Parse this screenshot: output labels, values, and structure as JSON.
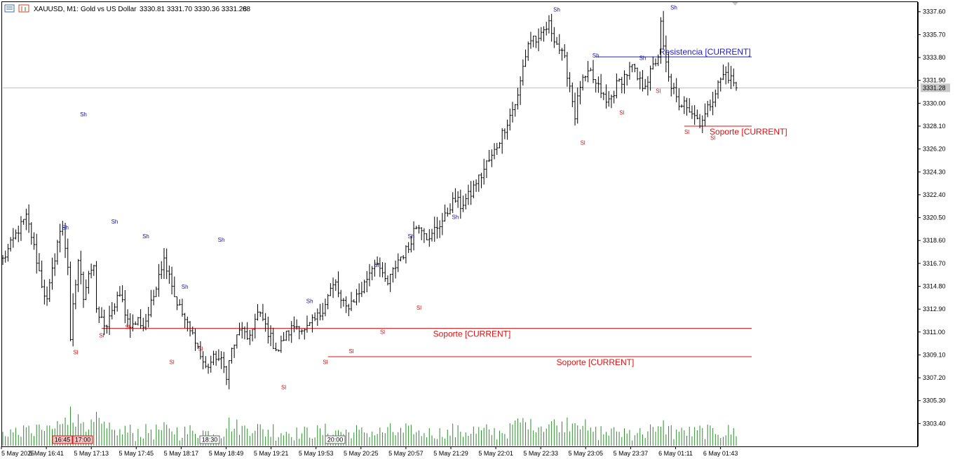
{
  "header": {
    "symbol": "XAUUSD, M1:",
    "description": "Gold vs US Dollar",
    "ohlc": "3330.81 3331.70 3330.36 3331.28",
    "tick_volume": "68"
  },
  "current_price_label": "3331.28",
  "colors": {
    "bars": "#000000",
    "volume": "#2e8b2e",
    "support": "#e01010",
    "resistance": "#2020d0",
    "swing_high": "#1010a0",
    "swing_low": "#d01010",
    "price_line": "#c0c0c0",
    "axis": "#000000",
    "time_tag_bg": "#f4c6c6"
  },
  "time_tags": [
    "16:45",
    "17:00",
    "18:30",
    "20:00"
  ],
  "chart_data": {
    "type": "ohlc",
    "xlabel": "",
    "ylabel": "",
    "ylim": [
      3301.5,
      3338.4
    ],
    "y_ticks": [
      "3337.60",
      "3335.70",
      "3333.80",
      "3331.90",
      "3330.00",
      "3328.10",
      "3326.20",
      "3324.30",
      "3322.40",
      "3320.50",
      "3318.60",
      "3316.70",
      "3314.80",
      "3312.90",
      "3311.00",
      "3309.10",
      "3307.20",
      "3305.30",
      "3303.40"
    ],
    "x_ticks": [
      "5 May 2025",
      "5 May 16:41",
      "5 May 17:13",
      "5 May 17:45",
      "5 May 18:17",
      "5 May 18:49",
      "5 May 19:21",
      "5 May 19:53",
      "5 May 20:25",
      "5 May 20:57",
      "5 May 21:29",
      "5 May 22:01",
      "5 May 22:33",
      "5 May 23:05",
      "5 May 23:37",
      "6 May 01:11",
      "6 May 01:43"
    ],
    "close_path": [
      [
        0,
        3317.0
      ],
      [
        3,
        3318.2
      ],
      [
        6,
        3319.5
      ],
      [
        9,
        3320.5
      ],
      [
        11,
        3319.0
      ],
      [
        13,
        3317.0
      ],
      [
        15,
        3315.0
      ],
      [
        17,
        3313.5
      ],
      [
        19,
        3316.0
      ],
      [
        21,
        3318.5
      ],
      [
        23,
        3319.8
      ],
      [
        25,
        3316.5
      ],
      [
        26,
        3310.0
      ],
      [
        27,
        3313.0
      ],
      [
        29,
        3317.0
      ],
      [
        31,
        3314.0
      ],
      [
        33,
        3316.0
      ],
      [
        35,
        3316.5
      ],
      [
        36,
        3312.5
      ],
      [
        38,
        3312.0
      ],
      [
        40,
        3311.5
      ],
      [
        42,
        3312.5
      ],
      [
        44,
        3314.0
      ],
      [
        46,
        3313.5
      ],
      [
        48,
        3312.0
      ],
      [
        50,
        3311.5
      ],
      [
        52,
        3312.0
      ],
      [
        54,
        3311.5
      ],
      [
        56,
        3312.5
      ],
      [
        58,
        3314.0
      ],
      [
        60,
        3316.0
      ],
      [
        62,
        3317.0
      ],
      [
        64,
        3316.0
      ],
      [
        66,
        3314.0
      ],
      [
        68,
        3313.0
      ],
      [
        70,
        3312.0
      ],
      [
        72,
        3311.0
      ],
      [
        74,
        3310.5
      ],
      [
        76,
        3309.0
      ],
      [
        78,
        3308.0
      ],
      [
        80,
        3308.5
      ],
      [
        82,
        3309.0
      ],
      [
        84,
        3308.5
      ],
      [
        86,
        3307.5
      ],
      [
        88,
        3309.5
      ],
      [
        90,
        3310.5
      ],
      [
        92,
        3311.5
      ],
      [
        94,
        3310.0
      ],
      [
        96,
        3311.5
      ],
      [
        98,
        3312.5
      ],
      [
        100,
        3312.0
      ],
      [
        102,
        3311.0
      ],
      [
        104,
        3310.0
      ],
      [
        106,
        3309.5
      ],
      [
        108,
        3310.5
      ],
      [
        110,
        3311.0
      ],
      [
        112,
        3311.5
      ],
      [
        114,
        3311.5
      ],
      [
        116,
        3311.0
      ],
      [
        118,
        3311.5
      ],
      [
        120,
        3312.0
      ],
      [
        122,
        3312.5
      ],
      [
        124,
        3313.5
      ],
      [
        126,
        3314.5
      ],
      [
        128,
        3315.0
      ],
      [
        130,
        3313.5
      ],
      [
        132,
        3313.0
      ],
      [
        134,
        3313.5
      ],
      [
        136,
        3314.0
      ],
      [
        138,
        3314.5
      ],
      [
        140,
        3315.5
      ],
      [
        142,
        3316.5
      ],
      [
        144,
        3317.0
      ],
      [
        146,
        3315.5
      ],
      [
        148,
        3315.0
      ],
      [
        150,
        3316.0
      ],
      [
        152,
        3317.0
      ],
      [
        154,
        3317.5
      ],
      [
        156,
        3318.0
      ],
      [
        158,
        3319.5
      ],
      [
        160,
        3320.0
      ],
      [
        162,
        3319.5
      ],
      [
        164,
        3318.5
      ],
      [
        166,
        3319.5
      ],
      [
        168,
        3320.0
      ],
      [
        170,
        3320.5
      ],
      [
        172,
        3321.5
      ],
      [
        174,
        3322.0
      ],
      [
        176,
        3321.5
      ],
      [
        178,
        3322.0
      ],
      [
        180,
        3322.5
      ],
      [
        182,
        3323.5
      ],
      [
        184,
        3324.0
      ],
      [
        186,
        3325.0
      ],
      [
        188,
        3325.5
      ],
      [
        190,
        3326.5
      ],
      [
        192,
        3327.5
      ],
      [
        194,
        3328.5
      ],
      [
        196,
        3329.5
      ],
      [
        198,
        3330.5
      ],
      [
        200,
        3333.0
      ],
      [
        202,
        3335.0
      ],
      [
        204,
        3335.5
      ],
      [
        206,
        3335.0
      ],
      [
        208,
        3336.0
      ],
      [
        210,
        3336.5
      ],
      [
        212,
        3335.5
      ],
      [
        214,
        3334.5
      ],
      [
        216,
        3333.5
      ],
      [
        218,
        3331.5
      ],
      [
        220,
        3329.0
      ],
      [
        222,
        3331.5
      ],
      [
        224,
        3332.0
      ],
      [
        226,
        3332.5
      ],
      [
        228,
        3331.5
      ],
      [
        230,
        3331.0
      ],
      [
        232,
        3330.0
      ],
      [
        234,
        3330.5
      ],
      [
        236,
        3331.5
      ],
      [
        238,
        3332.0
      ],
      [
        240,
        3332.5
      ],
      [
        242,
        3333.0
      ],
      [
        244,
        3332.0
      ],
      [
        246,
        3331.5
      ],
      [
        248,
        3332.0
      ],
      [
        250,
        3333.0
      ],
      [
        252,
        3334.0
      ],
      [
        253,
        3336.5
      ],
      [
        254,
        3334.5
      ],
      [
        256,
        3332.0
      ],
      [
        258,
        3331.0
      ],
      [
        260,
        3329.5
      ],
      [
        262,
        3330.5
      ],
      [
        264,
        3329.5
      ],
      [
        266,
        3329.0
      ],
      [
        268,
        3328.5
      ],
      [
        270,
        3329.0
      ],
      [
        272,
        3330.0
      ],
      [
        274,
        3331.0
      ],
      [
        276,
        3332.0
      ],
      [
        278,
        3332.5
      ],
      [
        280,
        3332.0
      ],
      [
        282,
        3331.5
      ]
    ],
    "swing_highs": [
      {
        "i": 31,
        "y": 3328.9,
        "label": "Sh"
      },
      {
        "i": 24,
        "y": 3319.5,
        "label": "Sh"
      },
      {
        "i": 43,
        "y": 3320.0,
        "label": "Sh"
      },
      {
        "i": 55,
        "y": 3318.8,
        "label": "Sh"
      },
      {
        "i": 70,
        "y": 3314.6,
        "label": "Sh"
      },
      {
        "i": 84,
        "y": 3318.5,
        "label": "Sh"
      },
      {
        "i": 118,
        "y": 3313.4,
        "label": "Sh"
      },
      {
        "i": 144,
        "y": 3316.4,
        "label": "Sh"
      },
      {
        "i": 157,
        "y": 3318.8,
        "label": "Sh"
      },
      {
        "i": 174,
        "y": 3320.4,
        "label": "Sh"
      },
      {
        "i": 213,
        "y": 3337.6,
        "label": "Sh"
      },
      {
        "i": 228,
        "y": 3333.8,
        "label": "Sh"
      },
      {
        "i": 246,
        "y": 3333.6,
        "label": "Sh"
      },
      {
        "i": 258,
        "y": 3337.8,
        "label": "Sh"
      }
    ],
    "swing_lows": [
      {
        "i": 28,
        "y": 3309.5,
        "label": "Sl"
      },
      {
        "i": 38,
        "y": 3310.9,
        "label": "Sl"
      },
      {
        "i": 48,
        "y": 3311.6,
        "label": "Sl"
      },
      {
        "i": 65,
        "y": 3308.7,
        "label": "Sl"
      },
      {
        "i": 76,
        "y": 3309.8,
        "label": "Sl"
      },
      {
        "i": 108,
        "y": 3306.6,
        "label": "Sl"
      },
      {
        "i": 124,
        "y": 3308.7,
        "label": "Sl"
      },
      {
        "i": 134,
        "y": 3309.6,
        "label": "Sl"
      },
      {
        "i": 146,
        "y": 3311.2,
        "label": "Sl"
      },
      {
        "i": 160,
        "y": 3313.2,
        "label": "Sl"
      },
      {
        "i": 223,
        "y": 3326.9,
        "label": "Sl"
      },
      {
        "i": 238,
        "y": 3329.4,
        "label": "Sl"
      },
      {
        "i": 252,
        "y": 3331.2,
        "label": "Sl"
      },
      {
        "i": 263,
        "y": 3327.8,
        "label": "Sl"
      },
      {
        "i": 273,
        "y": 3327.3,
        "label": "Sl"
      }
    ],
    "levels": [
      {
        "kind": "resistance",
        "price": 3333.85,
        "from_i": 228,
        "label": "Resistencia [CURRENT]"
      },
      {
        "kind": "support",
        "price": 3328.1,
        "from_i": 262,
        "label": "Soporte [CURRENT]"
      },
      {
        "kind": "support",
        "price": 3311.3,
        "from_i": 38,
        "label": "Soporte [CURRENT]"
      },
      {
        "kind": "support",
        "price": 3308.95,
        "from_i": 125,
        "label": "Soporte [CURRENT]"
      }
    ],
    "current_price": 3331.28
  }
}
